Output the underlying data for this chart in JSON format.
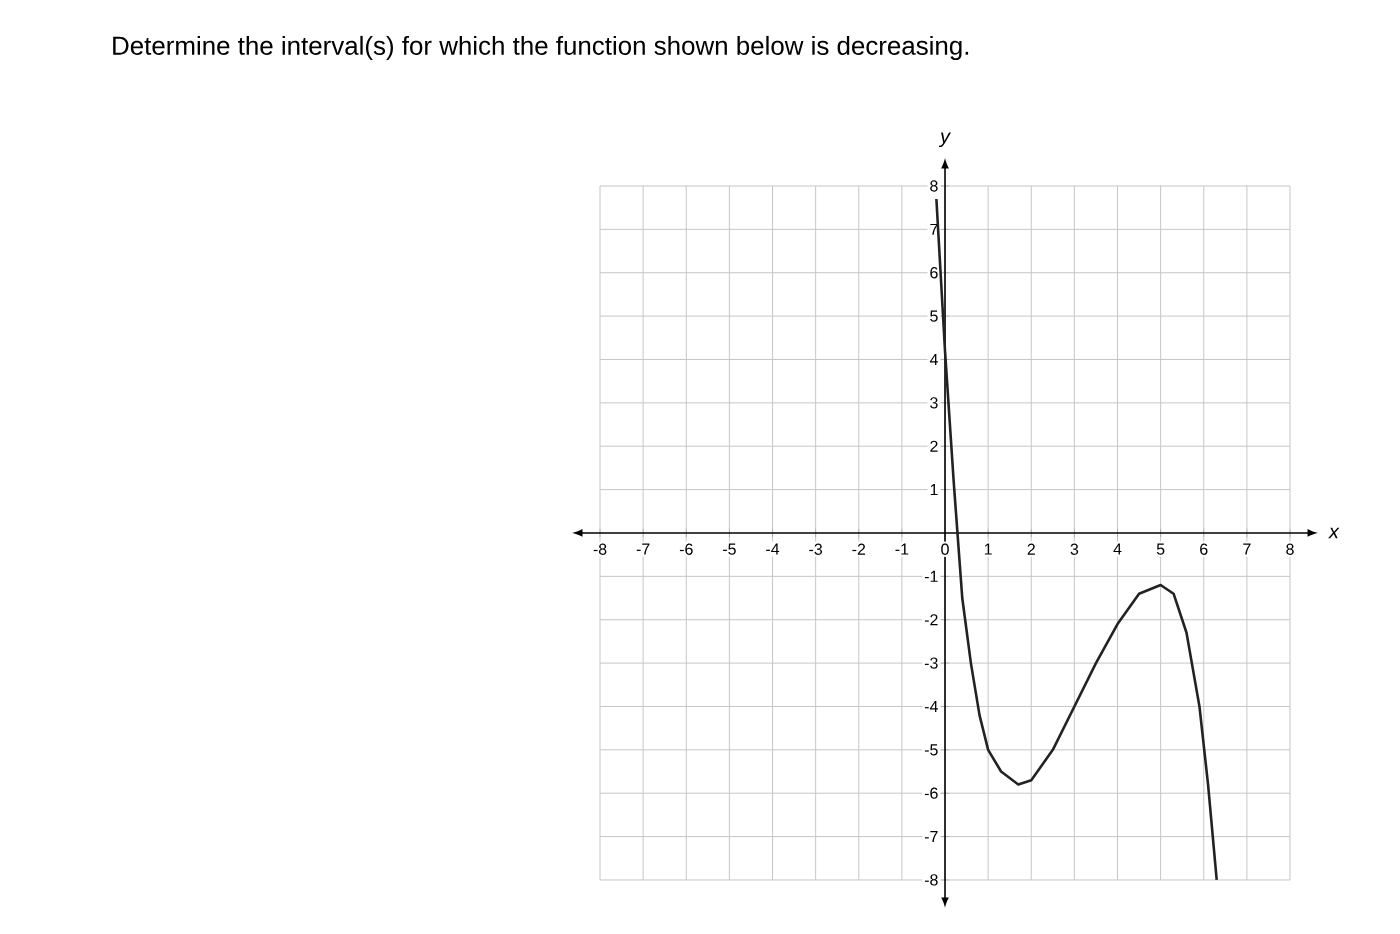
{
  "chart_data": {
    "type": "line",
    "title": "Determine the interval(s) for which the function shown below is decreasing.",
    "xlabel": "x",
    "ylabel": "y",
    "x": [
      -0.2,
      0,
      0.2,
      0.4,
      0.6,
      0.8,
      1,
      1.3,
      1.7,
      2,
      2.5,
      3,
      3.5,
      4,
      4.5,
      5,
      5.3,
      5.6,
      5.9,
      6.1,
      6.3
    ],
    "series": [
      {
        "color": "#222222",
        "values": [
          7.7,
          4.2,
          1.2,
          -1.5,
          -3,
          -4.2,
          -5,
          -5.5,
          -5.8,
          -5.7,
          -5,
          -4,
          -3,
          -2.1,
          -1.4,
          -1.2,
          -1.4,
          -2.3,
          -4,
          -5.8,
          -8
        ]
      }
    ],
    "xlim": [
      -8,
      8
    ],
    "ylim": [
      -8,
      8
    ],
    "xticks": [
      -8,
      -7,
      -6,
      -5,
      -4,
      -3,
      -2,
      -1,
      0,
      1,
      2,
      3,
      4,
      5,
      6,
      7,
      8
    ],
    "yticks": [
      -8,
      -7,
      -6,
      -5,
      -4,
      -3,
      -2,
      -1,
      1,
      2,
      3,
      4,
      5,
      6,
      7,
      8
    ],
    "grid": true,
    "marker": "none",
    "line_style": "solid"
  }
}
